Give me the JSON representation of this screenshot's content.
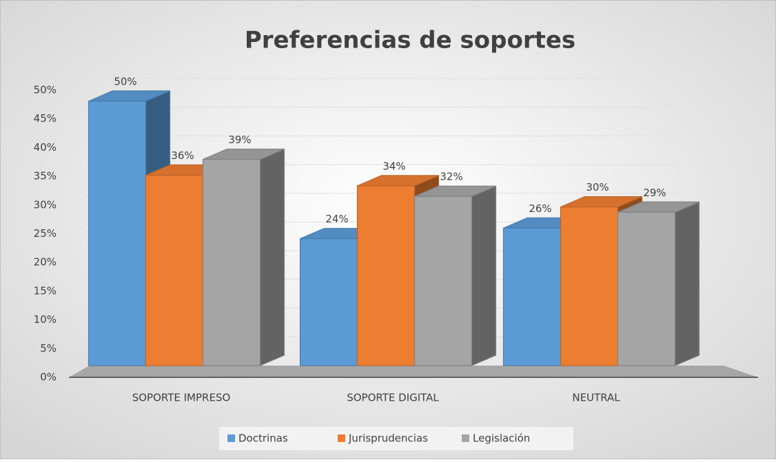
{
  "chart_data": {
    "type": "bar3d",
    "title": "Preferencias de soportes",
    "categories": [
      "SOPORTE IMPRESO",
      "SOPORTE DIGITAL",
      "NEUTRAL"
    ],
    "series": [
      {
        "name": "Doctrinas",
        "color": "#5b9bd5",
        "values": [
          50,
          24,
          26
        ],
        "value_labels": [
          "50%",
          "24%",
          "26%"
        ]
      },
      {
        "name": "Jurisprudencias",
        "color": "#ed7d31",
        "values": [
          36,
          34,
          30
        ],
        "value_labels": [
          "36%",
          "34%",
          "30%"
        ]
      },
      {
        "name": "Legislación",
        "color": "#a5a5a5",
        "values": [
          39,
          32,
          29
        ],
        "value_labels": [
          "39%",
          "32%",
          "29%"
        ]
      }
    ],
    "ylim": [
      0,
      50
    ],
    "yticks": [
      {
        "value": 0,
        "label": "0%"
      },
      {
        "value": 5,
        "label": "5%"
      },
      {
        "value": 10,
        "label": "10%"
      },
      {
        "value": 15,
        "label": "15%"
      },
      {
        "value": 20,
        "label": "20%"
      },
      {
        "value": 25,
        "label": "25%"
      },
      {
        "value": 30,
        "label": "30%"
      },
      {
        "value": 35,
        "label": "35%"
      },
      {
        "value": 40,
        "label": "40%"
      },
      {
        "value": 45,
        "label": "45%"
      },
      {
        "value": 50,
        "label": "50%"
      }
    ],
    "grid": true,
    "legend": "bottom"
  }
}
